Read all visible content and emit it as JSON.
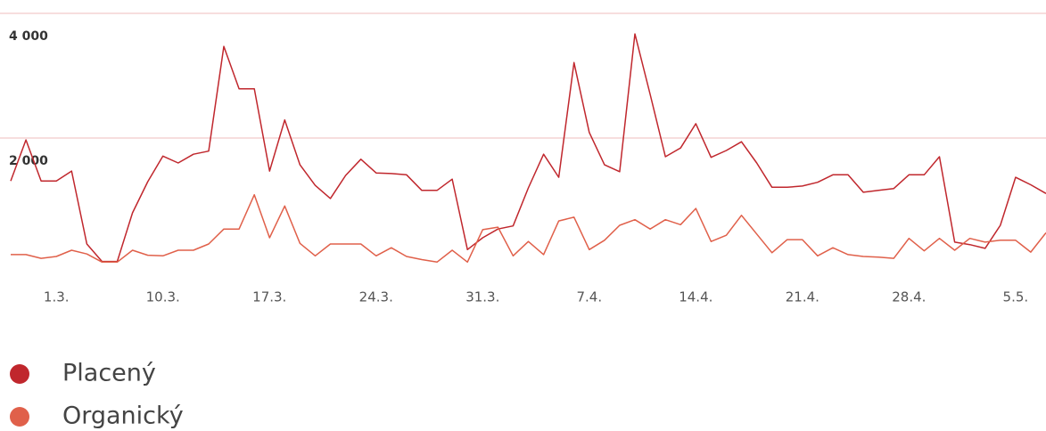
{
  "chart_data": {
    "type": "line",
    "categories": [
      null,
      null,
      null,
      "1.3.",
      null,
      null,
      null,
      null,
      null,
      null,
      "10.3.",
      null,
      null,
      null,
      null,
      null,
      null,
      "17.3.",
      null,
      null,
      null,
      null,
      null,
      null,
      "24.3.",
      null,
      null,
      null,
      null,
      null,
      null,
      "31.3.",
      null,
      null,
      null,
      null,
      null,
      null,
      "7.4.",
      null,
      null,
      null,
      null,
      null,
      null,
      "14.4.",
      null,
      null,
      null,
      null,
      null,
      null,
      "21.4.",
      null,
      null,
      null,
      null,
      null,
      null,
      "28.4.",
      null,
      null,
      null,
      null,
      null,
      null,
      "5.5.",
      null,
      null
    ],
    "series": [
      {
        "name": "Placený",
        "color": "#c0272d",
        "values": [
          1310,
          1970,
          1310,
          1310,
          1470,
          300,
          20,
          20,
          800,
          1300,
          1710,
          1600,
          1740,
          1790,
          3470,
          2790,
          2790,
          1470,
          2290,
          1570,
          1240,
          1030,
          1400,
          1660,
          1440,
          1430,
          1410,
          1160,
          1160,
          1340,
          210,
          400,
          540,
          590,
          1200,
          1740,
          1370,
          3210,
          2090,
          1570,
          1460,
          3670,
          2700,
          1700,
          1840,
          2230,
          1690,
          1800,
          1940,
          1600,
          1210,
          1210,
          1230,
          1290,
          1410,
          1410,
          1130,
          1160,
          1190,
          1410,
          1410,
          1700,
          330,
          290,
          230,
          600,
          1370,
          1250,
          1110
        ]
      },
      {
        "name": "Organický",
        "color": "#e0604a",
        "values": [
          130,
          130,
          70,
          100,
          200,
          140,
          10,
          10,
          200,
          120,
          110,
          200,
          200,
          300,
          540,
          540,
          1090,
          400,
          910,
          310,
          110,
          300,
          300,
          300,
          110,
          240,
          100,
          50,
          10,
          200,
          10,
          530,
          570,
          110,
          340,
          130,
          670,
          730,
          210,
          360,
          600,
          690,
          540,
          690,
          610,
          870,
          340,
          440,
          760,
          460,
          160,
          370,
          370,
          110,
          240,
          130,
          100,
          90,
          70,
          390,
          190,
          390,
          200,
          390,
          330,
          360,
          360,
          170,
          480
        ]
      }
    ],
    "ylim": [
      0,
      4000
    ],
    "yticks": [
      {
        "value": 2000,
        "label": "2 000"
      },
      {
        "value": 4000,
        "label": "4 000"
      }
    ],
    "grid": true
  }
}
